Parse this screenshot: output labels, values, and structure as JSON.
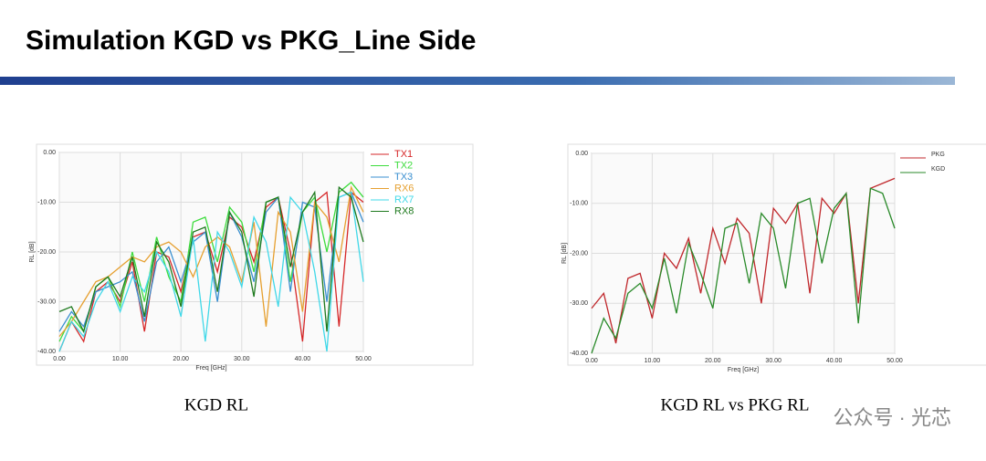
{
  "header": {
    "title": "Simulation KGD vs PKG_Line Side"
  },
  "watermark": "公众号 · 光芯",
  "chart_data": [
    {
      "type": "line",
      "title": "KGD RL",
      "xlabel": "Freq [GHz]",
      "ylabel": "RL [dB]",
      "x": [
        0,
        2,
        4,
        6,
        8,
        10,
        12,
        14,
        16,
        18,
        20,
        22,
        24,
        26,
        28,
        30,
        32,
        34,
        36,
        38,
        40,
        42,
        44,
        46,
        48,
        50
      ],
      "xlim": [
        0,
        50
      ],
      "ylim": [
        -40,
        0
      ],
      "grid": true,
      "legend": "right",
      "xticks": [
        {
          "value": 0,
          "label": "0.00"
        },
        {
          "value": 10,
          "label": "10.00"
        },
        {
          "value": 20,
          "label": "20.00"
        },
        {
          "value": 30,
          "label": "30.00"
        },
        {
          "value": 40,
          "label": "40.00"
        },
        {
          "value": 50,
          "label": "50.00"
        }
      ],
      "yticks": [
        {
          "value": 0,
          "label": "0.00"
        },
        {
          "value": -10,
          "label": "-10.00"
        },
        {
          "value": -20,
          "label": "-20.00"
        },
        {
          "value": -30,
          "label": "-30.00"
        },
        {
          "value": -40,
          "label": "-40.00"
        }
      ],
      "series": [
        {
          "name": "TX1",
          "color": "#d62728",
          "values": [
            -40,
            -34,
            -38,
            -28,
            -26,
            -30,
            -22,
            -36,
            -20,
            -21,
            -28,
            -17,
            -16,
            -24,
            -13,
            -15,
            -22,
            -11,
            -9,
            -20,
            -38,
            -10,
            -8,
            -35,
            -8,
            -10
          ]
        },
        {
          "name": "TX2",
          "color": "#3ddc3d",
          "values": [
            -38,
            -33,
            -36,
            -27,
            -25,
            -31,
            -20,
            -30,
            -17,
            -25,
            -30,
            -14,
            -13,
            -22,
            -11,
            -14,
            -24,
            -10,
            -9,
            -26,
            -12,
            -9,
            -20,
            -8,
            -6,
            -9
          ]
        },
        {
          "name": "TX3",
          "color": "#3a8fd0",
          "values": [
            -36,
            -32,
            -35,
            -28,
            -27,
            -26,
            -24,
            -34,
            -22,
            -19,
            -26,
            -18,
            -16,
            -30,
            -12,
            -17,
            -26,
            -12,
            -9,
            -28,
            -10,
            -11,
            -30,
            -9,
            -8,
            -14
          ]
        },
        {
          "name": "RX6",
          "color": "#e6a030",
          "values": [
            -37,
            -34,
            -30,
            -26,
            -25,
            -23,
            -21,
            -22,
            -19,
            -18,
            -20,
            -25,
            -19,
            -17,
            -19,
            -26,
            -14,
            -35,
            -12,
            -16,
            -32,
            -10,
            -13,
            -22,
            -7,
            -12
          ]
        },
        {
          "name": "RX7",
          "color": "#40d8e8",
          "values": [
            -40,
            -34,
            -37,
            -30,
            -26,
            -32,
            -25,
            -28,
            -20,
            -24,
            -33,
            -17,
            -38,
            -16,
            -20,
            -27,
            -13,
            -18,
            -31,
            -9,
            -12,
            -24,
            -40,
            -9,
            -8,
            -26
          ]
        },
        {
          "name": "RX8",
          "color": "#1e7a1e",
          "values": [
            -32,
            -31,
            -36,
            -27,
            -25,
            -29,
            -21,
            -33,
            -18,
            -22,
            -31,
            -16,
            -15,
            -28,
            -12,
            -16,
            -29,
            -10,
            -9,
            -23,
            -12,
            -8,
            -36,
            -7,
            -9,
            -18
          ]
        }
      ]
    },
    {
      "type": "line",
      "title": "KGD RL vs PKG RL",
      "xlabel": "Freq [GHz]",
      "ylabel": "RL [dB]",
      "x": [
        0,
        2,
        4,
        6,
        8,
        10,
        12,
        14,
        16,
        18,
        20,
        22,
        24,
        26,
        28,
        30,
        32,
        34,
        36,
        38,
        40,
        42,
        44,
        46,
        48,
        50
      ],
      "xlim": [
        0,
        50
      ],
      "ylim": [
        -40,
        0
      ],
      "grid": true,
      "legend": "right",
      "xticks": [
        {
          "value": 0,
          "label": "0.00"
        },
        {
          "value": 10,
          "label": "10.00"
        },
        {
          "value": 20,
          "label": "20.00"
        },
        {
          "value": 30,
          "label": "30.00"
        },
        {
          "value": 40,
          "label": "40.00"
        },
        {
          "value": 50,
          "label": "50.00"
        }
      ],
      "yticks": [
        {
          "value": 0,
          "label": "0.00"
        },
        {
          "value": -10,
          "label": "-10.00"
        },
        {
          "value": -20,
          "label": "-20.00"
        },
        {
          "value": -30,
          "label": "-30.00"
        },
        {
          "value": -40,
          "label": "-40.00"
        }
      ],
      "series": [
        {
          "name": "PKG",
          "color": "#c0282c",
          "values": [
            -31,
            -28,
            -38,
            -25,
            -24,
            -33,
            -20,
            -23,
            -17,
            -28,
            -15,
            -22,
            -13,
            -16,
            -30,
            -11,
            -14,
            -10,
            -28,
            -9,
            -12,
            -8,
            -30,
            -7,
            -6,
            -5
          ]
        },
        {
          "name": "KGD",
          "color": "#2a8a2a",
          "values": [
            -40,
            -33,
            -37,
            -28,
            -26,
            -31,
            -21,
            -32,
            -18,
            -24,
            -31,
            -15,
            -14,
            -26,
            -12,
            -15,
            -27,
            -10,
            -9,
            -22,
            -11,
            -8,
            -34,
            -7,
            -8,
            -15
          ]
        }
      ]
    }
  ]
}
